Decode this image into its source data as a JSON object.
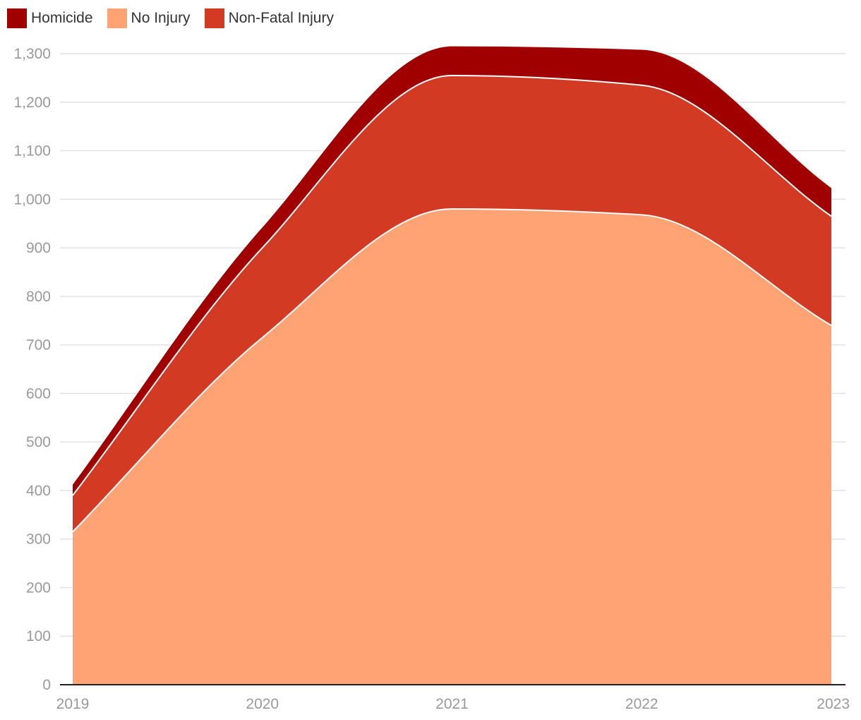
{
  "chart_data": {
    "type": "area",
    "stacked": true,
    "x": [
      "2019",
      "2020",
      "2021",
      "2022",
      "2023"
    ],
    "series": [
      {
        "name": "No Injury",
        "values": [
          315,
          715,
          980,
          968,
          740
        ],
        "color": "#FFA375"
      },
      {
        "name": "Non-Fatal Injury",
        "values": [
          75,
          185,
          275,
          267,
          225
        ],
        "color": "#D33A24"
      },
      {
        "name": "Homicide",
        "values": [
          22,
          42,
          60,
          73,
          58
        ],
        "color": "#A00000"
      }
    ],
    "legend": [
      {
        "name": "Homicide",
        "color": "#A00000"
      },
      {
        "name": "No Injury",
        "color": "#FFA375"
      },
      {
        "name": "Non-Fatal Injury",
        "color": "#D33A24"
      }
    ],
    "y_ticks": [
      "0",
      "100",
      "200",
      "300",
      "400",
      "500",
      "600",
      "700",
      "800",
      "900",
      "1,000",
      "1,100",
      "1,200",
      "1,300"
    ],
    "ylim": [
      0,
      1300
    ],
    "grid": true,
    "legend_position": "top-left",
    "title": "",
    "xlabel": "",
    "ylabel": ""
  }
}
